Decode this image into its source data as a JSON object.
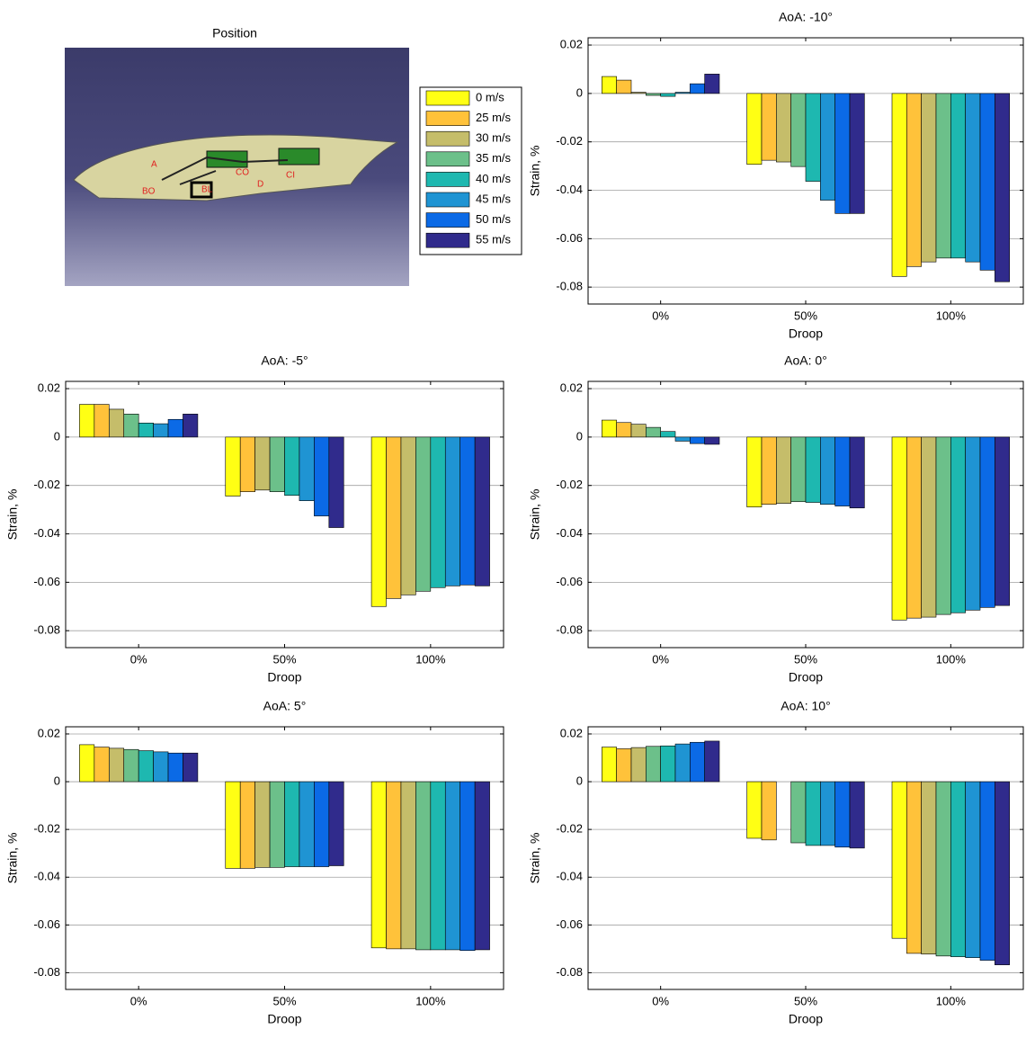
{
  "position": {
    "title": "Position",
    "labels": [
      "A",
      "BO",
      "BL",
      "CO",
      "CI",
      "D"
    ]
  },
  "legend": [
    {
      "name": "0 m/s",
      "color": "#ffff14"
    },
    {
      "name": "25 m/s",
      "color": "#ffc23a"
    },
    {
      "name": "30 m/s",
      "color": "#c5bd6a"
    },
    {
      "name": "35 m/s",
      "color": "#6cc08a"
    },
    {
      "name": "40 m/s",
      "color": "#1eb8b0"
    },
    {
      "name": "45 m/s",
      "color": "#1f94d3"
    },
    {
      "name": "50 m/s",
      "color": "#0b6ae6"
    },
    {
      "name": "55 m/s",
      "color": "#302b8c"
    }
  ],
  "chart_data": [
    {
      "type": "bar",
      "title": "AoA: -10°",
      "xlabel": "Droop",
      "ylabel": "Strain, %",
      "categories": [
        "0%",
        "50%",
        "100%"
      ],
      "ylim": [
        -0.087,
        0.023
      ],
      "yticks": [
        0.02,
        0,
        -0.02,
        -0.04,
        -0.06,
        -0.08
      ],
      "grid": true,
      "series": [
        {
          "values": [
            0.007,
            -0.0293,
            -0.0756
          ]
        },
        {
          "values": [
            0.0055,
            -0.0276,
            -0.0715
          ]
        },
        {
          "values": [
            0.0005,
            -0.0283,
            -0.0696
          ]
        },
        {
          "values": [
            -0.0008,
            -0.0302,
            -0.068
          ]
        },
        {
          "values": [
            -0.0012,
            -0.0363,
            -0.068
          ]
        },
        {
          "values": [
            0.0005,
            -0.0441,
            -0.0696
          ]
        },
        {
          "values": [
            0.004,
            -0.0496,
            -0.073
          ]
        },
        {
          "values": [
            0.008,
            -0.0496,
            -0.0778
          ]
        }
      ]
    },
    {
      "type": "bar",
      "title": "AoA: -5°",
      "xlabel": "Droop",
      "ylabel": "Strain, %",
      "categories": [
        "0%",
        "50%",
        "100%"
      ],
      "ylim": [
        -0.087,
        0.023
      ],
      "yticks": [
        0.02,
        0,
        -0.02,
        -0.04,
        -0.06,
        -0.08
      ],
      "grid": true,
      "series": [
        {
          "values": [
            0.0135,
            -0.0244,
            -0.07
          ]
        },
        {
          "values": [
            0.0135,
            -0.0226,
            -0.0667
          ]
        },
        {
          "values": [
            0.0115,
            -0.0219,
            -0.0652
          ]
        },
        {
          "values": [
            0.0095,
            -0.0226,
            -0.0637
          ]
        },
        {
          "values": [
            0.0058,
            -0.0241,
            -0.0622
          ]
        },
        {
          "values": [
            0.0055,
            -0.0263,
            -0.0615
          ]
        },
        {
          "values": [
            0.0073,
            -0.0326,
            -0.0611
          ]
        },
        {
          "values": [
            0.0095,
            -0.0374,
            -0.0615
          ]
        }
      ]
    },
    {
      "type": "bar",
      "title": "AoA: 0°",
      "xlabel": "Droop",
      "ylabel": "Strain, %",
      "categories": [
        "0%",
        "50%",
        "100%"
      ],
      "ylim": [
        -0.087,
        0.023
      ],
      "yticks": [
        0.02,
        0,
        -0.02,
        -0.04,
        -0.06,
        -0.08
      ],
      "grid": true,
      "series": [
        {
          "values": [
            0.007,
            -0.0289,
            -0.0756
          ]
        },
        {
          "values": [
            0.006,
            -0.0278,
            -0.0748
          ]
        },
        {
          "values": [
            0.0053,
            -0.0274,
            -0.0744
          ]
        },
        {
          "values": [
            0.004,
            -0.0267,
            -0.0733
          ]
        },
        {
          "values": [
            0.0023,
            -0.027,
            -0.0726
          ]
        },
        {
          "values": [
            -0.0017,
            -0.0278,
            -0.0715
          ]
        },
        {
          "values": [
            -0.0027,
            -0.0285,
            -0.0704
          ]
        },
        {
          "values": [
            -0.003,
            -0.0293,
            -0.0696
          ]
        }
      ]
    },
    {
      "type": "bar",
      "title": "AoA: 5°",
      "xlabel": "Droop",
      "ylabel": "Strain, %",
      "categories": [
        "0%",
        "50%",
        "100%"
      ],
      "ylim": [
        -0.087,
        0.023
      ],
      "yticks": [
        0.02,
        0,
        -0.02,
        -0.04,
        -0.06,
        -0.08
      ],
      "grid": true,
      "series": [
        {
          "values": [
            0.0155,
            -0.0363,
            -0.0696
          ]
        },
        {
          "values": [
            0.0145,
            -0.0363,
            -0.07
          ]
        },
        {
          "values": [
            0.014,
            -0.0359,
            -0.07
          ]
        },
        {
          "values": [
            0.0135,
            -0.0359,
            -0.0704
          ]
        },
        {
          "values": [
            0.013,
            -0.0356,
            -0.0704
          ]
        },
        {
          "values": [
            0.0125,
            -0.0356,
            -0.0704
          ]
        },
        {
          "values": [
            0.012,
            -0.0356,
            -0.0707
          ]
        },
        {
          "values": [
            0.012,
            -0.0352,
            -0.0704
          ]
        }
      ]
    },
    {
      "type": "bar",
      "title": "AoA: 10°",
      "xlabel": "Droop",
      "ylabel": "Strain, %",
      "categories": [
        "0%",
        "50%",
        "100%"
      ],
      "ylim": [
        -0.087,
        0.023
      ],
      "yticks": [
        0.02,
        0,
        -0.02,
        -0.04,
        -0.06,
        -0.08
      ],
      "grid": true,
      "series": [
        {
          "values": [
            0.0145,
            -0.0237,
            -0.0656
          ]
        },
        {
          "values": [
            0.0138,
            -0.0244,
            -0.0719
          ]
        },
        {
          "values": [
            0.0143,
            null,
            -0.0722
          ]
        },
        {
          "values": [
            0.0148,
            -0.0256,
            -0.073
          ]
        },
        {
          "values": [
            0.015,
            -0.0267,
            -0.0733
          ]
        },
        {
          "values": [
            0.0158,
            -0.0267,
            -0.0737
          ]
        },
        {
          "values": [
            0.0165,
            -0.0274,
            -0.0748
          ]
        },
        {
          "values": [
            0.017,
            -0.0278,
            -0.0767
          ]
        }
      ]
    }
  ]
}
